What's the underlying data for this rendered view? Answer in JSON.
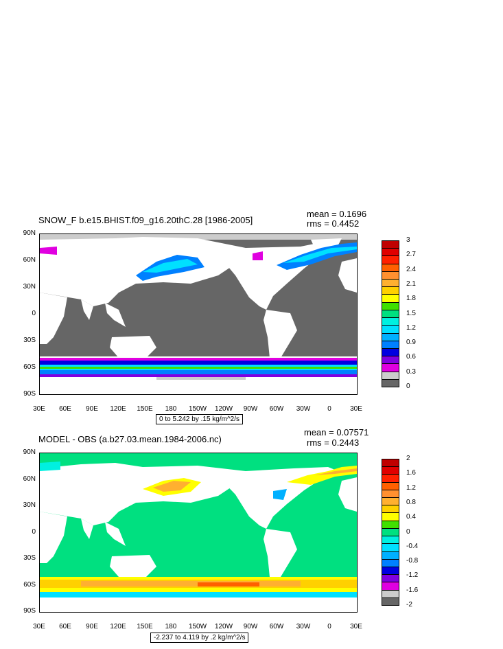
{
  "panels": [
    {
      "title": "SNOW_F b.e15.BHIST.f09_g16.20thC.28 [1986-2005]",
      "mean": "mean = 0.1696",
      "rms": "rms = 0.4452",
      "info": "0 to 5.242 by .15 kg/m^2/s",
      "lat_labels": [
        "90N",
        "60N",
        "30N",
        "0",
        "30S",
        "60S",
        "90S"
      ],
      "lon_labels": [
        "30E",
        "60E",
        "90E",
        "120E",
        "150E",
        "180",
        "150W",
        "120W",
        "90W",
        "60W",
        "30W",
        "0",
        "30E"
      ],
      "colorbar": {
        "labels": [
          "3",
          "2.7",
          "2.4",
          "2.1",
          "1.8",
          "1.5",
          "1.2",
          "0.9",
          "0.6",
          "0.3",
          "0"
        ],
        "colors": [
          "#666666",
          "#cccccc",
          "#e000e0",
          "#8000e0",
          "#0000e0",
          "#0080ff",
          "#00b0ff",
          "#00e0ff",
          "#00f0e0",
          "#00e080",
          "#40e000",
          "#ffff00",
          "#ffd000",
          "#ffb030",
          "#ff9030",
          "#ff6000",
          "#ff2000",
          "#e00000",
          "#c00000"
        ]
      }
    },
    {
      "title": "MODEL - OBS (a.b27.03.mean.1984-2006.nc)",
      "mean": "mean = 0.07571",
      "rms": "rms = 0.2443",
      "info": "-2.237 to 4.119 by .2 kg/m^2/s",
      "lat_labels": [
        "90N",
        "60N",
        "30N",
        "0",
        "30S",
        "60S",
        "90S"
      ],
      "lon_labels": [
        "30E",
        "60E",
        "90E",
        "120E",
        "150E",
        "180",
        "150W",
        "120W",
        "90W",
        "60W",
        "30W",
        "0",
        "30E"
      ],
      "colorbar": {
        "labels": [
          "2",
          "1.6",
          "1.2",
          "0.8",
          "0.4",
          "0",
          "-0.4",
          "-0.8",
          "-1.2",
          "-1.6",
          "-2"
        ],
        "colors": [
          "#666666",
          "#cccccc",
          "#e000e0",
          "#8000e0",
          "#0000e0",
          "#0080ff",
          "#00b0ff",
          "#00e0ff",
          "#00f0e0",
          "#00e080",
          "#40e000",
          "#ffff00",
          "#ffd000",
          "#ffb030",
          "#ff9030",
          "#ff6000",
          "#ff2000",
          "#e00000",
          "#c00000"
        ]
      }
    }
  ]
}
